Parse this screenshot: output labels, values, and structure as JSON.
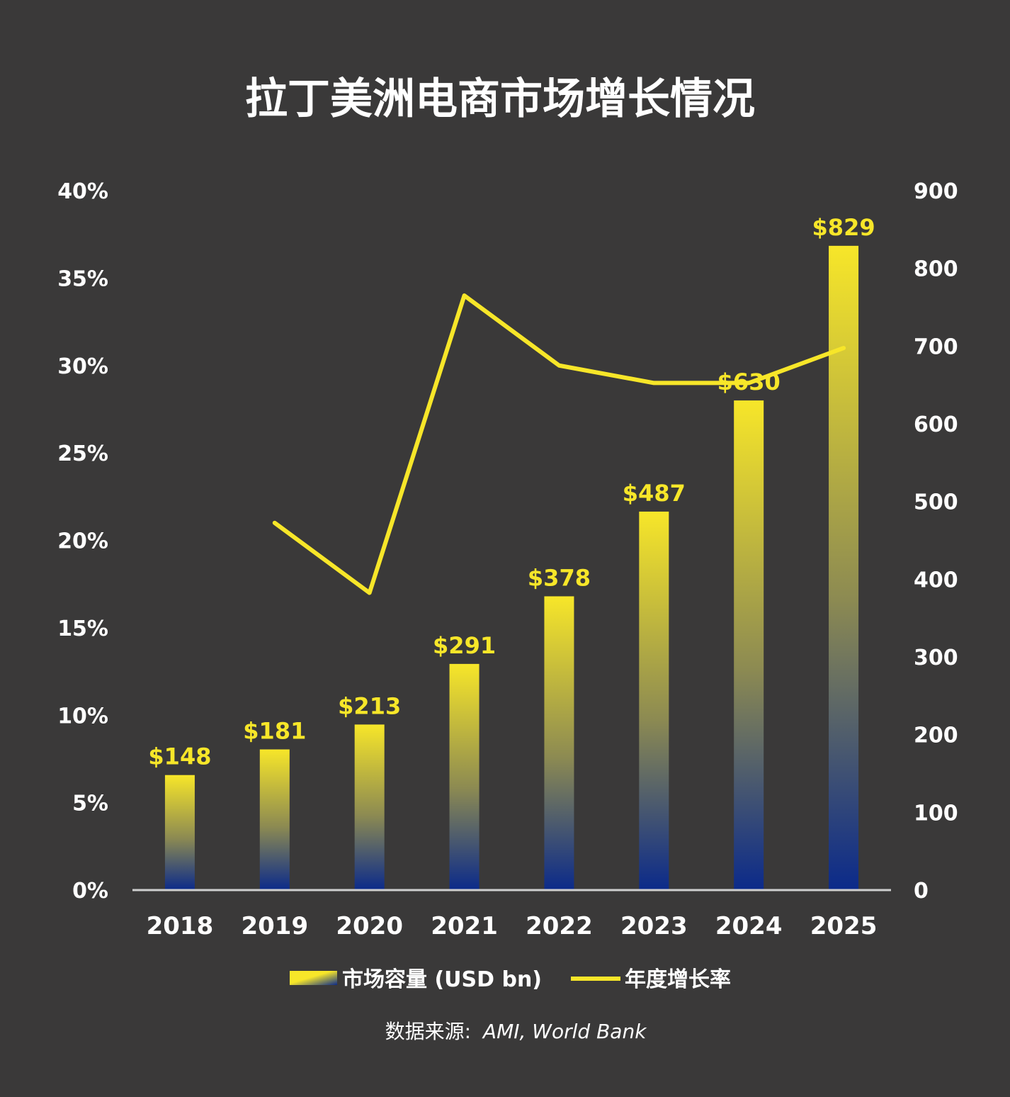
{
  "title": "拉丁美洲电商市场增长情况",
  "source": {
    "prefix": "数据来源:",
    "text": "AMI, World Bank"
  },
  "legend": {
    "bar_label": "市场容量 (USD bn)",
    "line_label": "年度增长率"
  },
  "colors": {
    "background": "#3a3939",
    "bar_top": "#f7e629",
    "bar_bottom": "#0b2a8a",
    "line": "#f7e629",
    "text": "#ffffff",
    "label": "#f7e629"
  },
  "chart_data": {
    "type": "bar",
    "categories": [
      "2018",
      "2019",
      "2020",
      "2021",
      "2022",
      "2023",
      "2024",
      "2025"
    ],
    "series": [
      {
        "name": "市场容量 (USD bn)",
        "type": "bar",
        "axis": "right",
        "values": [
          148,
          181,
          213,
          291,
          378,
          487,
          630,
          829
        ],
        "labels": [
          "$148",
          "$181",
          "$213",
          "$291",
          "$378",
          "$487",
          "$630",
          "$829"
        ]
      },
      {
        "name": "年度增长率",
        "type": "line",
        "axis": "left",
        "values": [
          null,
          21,
          17,
          34,
          30,
          29,
          29,
          31
        ]
      }
    ],
    "y_left": {
      "range": [
        0,
        40
      ],
      "ticks": [
        "0%",
        "5%",
        "10%",
        "15%",
        "20%",
        "25%",
        "30%",
        "35%",
        "40%"
      ]
    },
    "y_right": {
      "range": [
        0,
        900
      ],
      "ticks": [
        "0",
        "100",
        "200",
        "300",
        "400",
        "500",
        "600",
        "700",
        "800",
        "900"
      ]
    },
    "grid": false,
    "legend_position": "bottom"
  }
}
